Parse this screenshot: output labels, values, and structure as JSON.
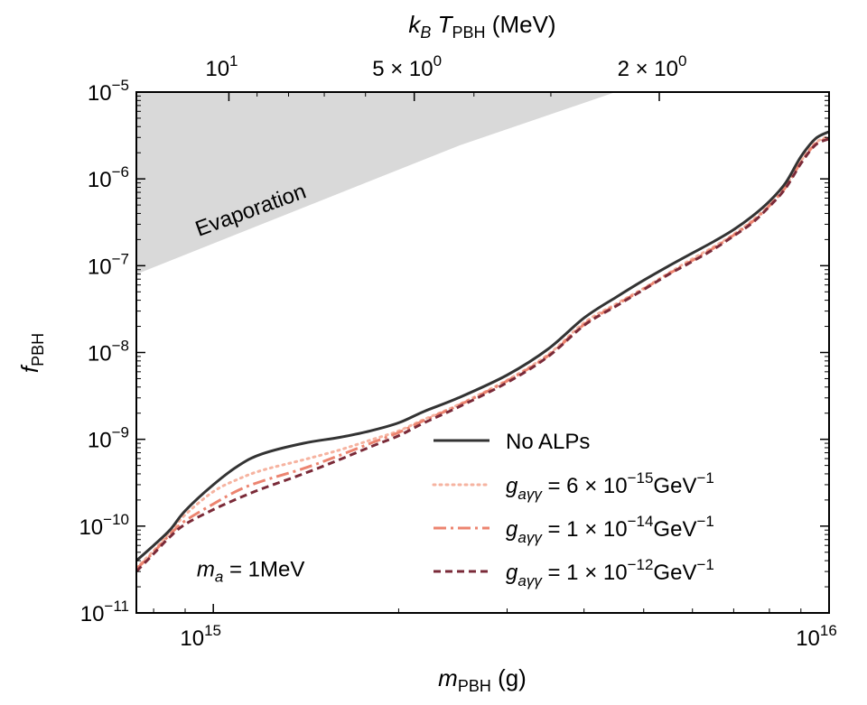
{
  "chart_data": {
    "type": "line",
    "title": "",
    "xlabel": "m_PBH (g)",
    "ylabel": "f_PBH",
    "top_xlabel": "k_B T_PBH (MeV)",
    "xscale": "log",
    "yscale": "log",
    "xlim": [
      750000000000000.0,
      1e+16
    ],
    "ylim": [
      1e-11,
      1e-05
    ],
    "x_ticks": [
      {
        "value": 1000000000000000.0,
        "mantissa": "10",
        "exp": "15"
      },
      {
        "value": 1e+16,
        "mantissa": "10",
        "exp": "16"
      }
    ],
    "y_ticks": [
      {
        "value": 1e-05,
        "mantissa": "10",
        "exp": "−5"
      },
      {
        "value": 1e-06,
        "mantissa": "10",
        "exp": "−6"
      },
      {
        "value": 1e-07,
        "mantissa": "10",
        "exp": "−7"
      },
      {
        "value": 1e-08,
        "mantissa": "10",
        "exp": "−8"
      },
      {
        "value": 1e-09,
        "mantissa": "10",
        "exp": "−9"
      },
      {
        "value": 1e-10,
        "mantissa": "10",
        "exp": "−10"
      },
      {
        "value": 1e-11,
        "mantissa": "10",
        "exp": "−11"
      }
    ],
    "top_ticks": [
      {
        "mass": 1060000000000000.0,
        "label_main": "10",
        "label_exp": "1"
      },
      {
        "mass": 2120000000000000.0,
        "label_main": "5 × 10",
        "label_exp": "0"
      },
      {
        "mass": 5300000000000000.0,
        "label_main": "2 × 10",
        "label_exp": "0"
      }
    ],
    "shaded_region": {
      "label": "Evaporation",
      "color": "#d9d9d9",
      "boundary": [
        [
          750000000000000.0,
          8e-08
        ],
        [
          2500000000000000.0,
          2.4e-06
        ],
        [
          4500000000000000.0,
          1e-05
        ]
      ]
    },
    "annotation": {
      "text_main": "m",
      "text_sub": "a",
      "text_rest": " = 1MeV",
      "x": 940000000000000.0,
      "y": 3.2e-11
    },
    "legend": {
      "position": "lower-right"
    },
    "series": [
      {
        "name": "No ALPs",
        "color": "#333333",
        "dash": "solid",
        "points": [
          [
            750000000000000.0,
            4e-11
          ],
          [
            800000000000000.0,
            6e-11
          ],
          [
            850000000000000.0,
            9e-11
          ],
          [
            900000000000000.0,
            1.5e-10
          ],
          [
            1000000000000000.0,
            3e-10
          ],
          [
            1100000000000000.0,
            5e-10
          ],
          [
            1200000000000000.0,
            6.8e-10
          ],
          [
            1400000000000000.0,
            9e-10
          ],
          [
            1600000000000000.0,
            1.05e-09
          ],
          [
            1800000000000000.0,
            1.25e-09
          ],
          [
            2000000000000000.0,
            1.55e-09
          ],
          [
            2200000000000000.0,
            2.1e-09
          ],
          [
            2500000000000000.0,
            3e-09
          ],
          [
            3000000000000000.0,
            5.5e-09
          ],
          [
            3500000000000000.0,
            1.1e-08
          ],
          [
            4000000000000000.0,
            2.5e-08
          ],
          [
            4500000000000000.0,
            4.3e-08
          ],
          [
            5000000000000000.0,
            6.8e-08
          ],
          [
            5500000000000000.0,
            1e-07
          ],
          [
            6000000000000000.0,
            1.4e-07
          ],
          [
            6500000000000000.0,
            1.9e-07
          ],
          [
            7000000000000000.0,
            2.6e-07
          ],
          [
            7500000000000000.0,
            3.7e-07
          ],
          [
            8000000000000000.0,
            5.5e-07
          ],
          [
            8500000000000000.0,
            9e-07
          ],
          [
            9000000000000000.0,
            1.8e-06
          ],
          [
            9500000000000000.0,
            2.9e-06
          ],
          [
            1e+16,
            3.5e-06
          ]
        ]
      },
      {
        "name_main": "g",
        "name_sub": "aγγ",
        "name_rest": " = 6 × 10",
        "name_exp": "−15",
        "name_unit": "GeV",
        "name_unit_exp": "−1",
        "color": "#f6b3a0",
        "dash": "dotted",
        "points": [
          [
            750000000000000.0,
            3.3e-11
          ],
          [
            800000000000000.0,
            5.2e-11
          ],
          [
            850000000000000.0,
            8.5e-11
          ],
          [
            900000000000000.0,
            1.35e-10
          ],
          [
            1000000000000000.0,
            2.5e-10
          ],
          [
            1100000000000000.0,
            3.5e-10
          ],
          [
            1200000000000000.0,
            4.4e-10
          ],
          [
            1400000000000000.0,
            5.8e-10
          ],
          [
            1600000000000000.0,
            7.5e-10
          ],
          [
            1800000000000000.0,
            9.8e-10
          ],
          [
            2000000000000000.0,
            1.25e-09
          ],
          [
            2200000000000000.0,
            1.7e-09
          ],
          [
            2500000000000000.0,
            2.5e-09
          ],
          [
            3000000000000000.0,
            4.8e-09
          ],
          [
            3500000000000000.0,
            9.5e-09
          ],
          [
            4000000000000000.0,
            2.2e-08
          ],
          [
            4500000000000000.0,
            3.6e-08
          ],
          [
            5000000000000000.0,
            5.5e-08
          ],
          [
            5500000000000000.0,
            8.3e-08
          ],
          [
            6000000000000000.0,
            1.2e-07
          ],
          [
            6500000000000000.0,
            1.65e-07
          ],
          [
            7000000000000000.0,
            2.3e-07
          ],
          [
            7500000000000000.0,
            3.3e-07
          ],
          [
            8000000000000000.0,
            5e-07
          ],
          [
            8500000000000000.0,
            8.2e-07
          ],
          [
            9000000000000000.0,
            1.6e-06
          ],
          [
            9500000000000000.0,
            2.6e-06
          ],
          [
            1e+16,
            3.1e-06
          ]
        ]
      },
      {
        "name_main": "g",
        "name_sub": "aγγ",
        "name_rest": " = 1 × 10",
        "name_exp": "−14",
        "name_unit": "GeV",
        "name_unit_exp": "−1",
        "color": "#ec8470",
        "dash": "dashdot",
        "points": [
          [
            750000000000000.0,
            3.2e-11
          ],
          [
            800000000000000.0,
            5e-11
          ],
          [
            850000000000000.0,
            8e-11
          ],
          [
            900000000000000.0,
            1.15e-10
          ],
          [
            1000000000000000.0,
            1.8e-10
          ],
          [
            1100000000000000.0,
            2.6e-10
          ],
          [
            1200000000000000.0,
            3.3e-10
          ],
          [
            1400000000000000.0,
            4.6e-10
          ],
          [
            1600000000000000.0,
            6.5e-10
          ],
          [
            1800000000000000.0,
            9e-10
          ],
          [
            2000000000000000.0,
            1.2e-09
          ],
          [
            2200000000000000.0,
            1.65e-09
          ],
          [
            2500000000000000.0,
            2.45e-09
          ],
          [
            3000000000000000.0,
            4.7e-09
          ],
          [
            3500000000000000.0,
            9.2e-09
          ],
          [
            4000000000000000.0,
            2.1e-08
          ],
          [
            4500000000000000.0,
            3.5e-08
          ],
          [
            5000000000000000.0,
            5.4e-08
          ],
          [
            5500000000000000.0,
            8.1e-08
          ],
          [
            6000000000000000.0,
            1.15e-07
          ],
          [
            6500000000000000.0,
            1.6e-07
          ],
          [
            7000000000000000.0,
            2.25e-07
          ],
          [
            7500000000000000.0,
            3.2e-07
          ],
          [
            8000000000000000.0,
            4.9e-07
          ],
          [
            8500000000000000.0,
            8e-07
          ],
          [
            9000000000000000.0,
            1.55e-06
          ],
          [
            9500000000000000.0,
            2.5e-06
          ],
          [
            1e+16,
            3e-06
          ]
        ]
      },
      {
        "name_main": "g",
        "name_sub": "aγγ",
        "name_rest": " = 1 × 10",
        "name_exp": "−12",
        "name_unit": "GeV",
        "name_unit_exp": "−1",
        "color": "#7a2a38",
        "dash": "dashed",
        "points": [
          [
            750000000000000.0,
            3e-11
          ],
          [
            800000000000000.0,
            4.8e-11
          ],
          [
            850000000000000.0,
            7.5e-11
          ],
          [
            900000000000000.0,
            1.05e-10
          ],
          [
            1000000000000000.0,
            1.55e-10
          ],
          [
            1100000000000000.0,
            2.1e-10
          ],
          [
            1200000000000000.0,
            2.7e-10
          ],
          [
            1400000000000000.0,
            4e-10
          ],
          [
            1600000000000000.0,
            5.8e-10
          ],
          [
            1800000000000000.0,
            8.2e-10
          ],
          [
            2000000000000000.0,
            1.1e-09
          ],
          [
            2200000000000000.0,
            1.55e-09
          ],
          [
            2500000000000000.0,
            2.35e-09
          ],
          [
            3000000000000000.0,
            4.5e-09
          ],
          [
            3500000000000000.0,
            9e-09
          ],
          [
            4000000000000000.0,
            2.05e-08
          ],
          [
            4500000000000000.0,
            3.4e-08
          ],
          [
            5000000000000000.0,
            5.3e-08
          ],
          [
            5500000000000000.0,
            8e-08
          ],
          [
            6000000000000000.0,
            1.12e-07
          ],
          [
            6500000000000000.0,
            1.55e-07
          ],
          [
            7000000000000000.0,
            2.2e-07
          ],
          [
            7500000000000000.0,
            3.1e-07
          ],
          [
            8000000000000000.0,
            4.8e-07
          ],
          [
            8500000000000000.0,
            7.8e-07
          ],
          [
            9000000000000000.0,
            1.5e-06
          ],
          [
            9500000000000000.0,
            2.45e-06
          ],
          [
            1e+16,
            2.9e-06
          ]
        ]
      }
    ]
  }
}
